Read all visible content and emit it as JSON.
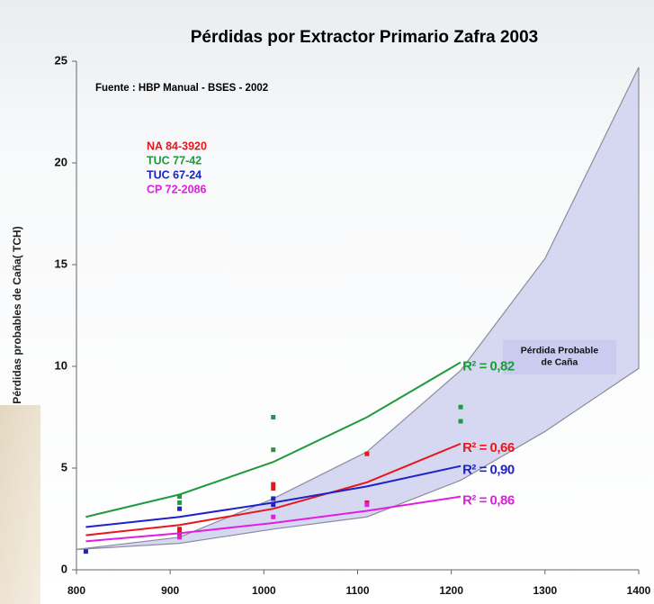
{
  "chart_data": {
    "type": "line",
    "title": "Pérdidas por Extractor Primario Zafra 2003",
    "ylabel": "Pérdidas  probables de Caña( TCH)",
    "annotation": "Fuente : HBP Manual - BSES - 2002",
    "band_label": "Pérdida Probable de Caña",
    "xlim": [
      800,
      1400
    ],
    "xticks": [
      800,
      900,
      1000,
      1100,
      1200,
      1300,
      1400
    ],
    "ylim": [
      0,
      25
    ],
    "yticks": [
      0,
      5,
      10,
      15,
      20,
      25
    ],
    "grid": false,
    "legend": "upper left",
    "band": {
      "color": "#d6d8f2",
      "x": [
        800,
        910,
        1010,
        1110,
        1210,
        1300,
        1400
      ],
      "upper": [
        1,
        1.6,
        3.5,
        5.8,
        9.8,
        15.3,
        24.7
      ],
      "lower": [
        1,
        1.3,
        2.0,
        2.6,
        4.4,
        6.8,
        9.9
      ]
    },
    "x": [
      810,
      910,
      1010,
      1110,
      1210
    ],
    "series": [
      {
        "name": "NA 84-3920",
        "color": "#e8161b",
        "r2": "R² = 0,66",
        "values": [
          1.7,
          2.2,
          3.0,
          4.3,
          6.2
        ],
        "points": {
          "x": [
            910,
            910,
            1010,
            1010,
            1110,
            1110
          ],
          "y": [
            2.0,
            1.8,
            4.2,
            4.0,
            5.7,
            3.3
          ]
        }
      },
      {
        "name": "TUC 77-42",
        "color": "#1f9a3c",
        "r2": "R² = 0,82",
        "values": [
          2.6,
          3.7,
          5.3,
          7.5,
          10.2
        ],
        "points": {
          "x": [
            910,
            910,
            1010,
            1010,
            1210,
            1210
          ],
          "y": [
            3.6,
            3.3,
            7.5,
            5.9,
            8.0,
            7.3
          ]
        }
      },
      {
        "name": "TUC 67-24",
        "color": "#1e22c8",
        "r2": "R² = 0,90",
        "values": [
          2.1,
          2.6,
          3.3,
          4.1,
          5.1
        ],
        "points": {
          "x": [
            810,
            910,
            1010,
            1010
          ],
          "y": [
            0.9,
            3.0,
            3.5,
            3.2
          ]
        }
      },
      {
        "name": "CP 72-2086",
        "color": "#e01ee0",
        "r2": "R² = 0,86",
        "values": [
          1.4,
          1.8,
          2.3,
          2.9,
          3.6
        ],
        "points": {
          "x": [
            910,
            1010,
            1110
          ],
          "y": [
            1.6,
            2.6,
            3.2
          ]
        }
      }
    ]
  }
}
